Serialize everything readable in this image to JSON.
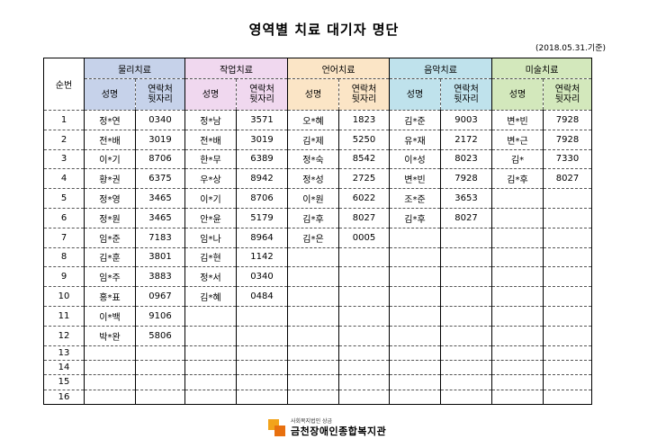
{
  "title": "영역별 치료 대기자 명단",
  "date": "(2018.05.31.기준)",
  "header": {
    "num_label": "순번",
    "categories": [
      "물리치료",
      "작업치료",
      "언어치료",
      "음악치료",
      "미술치료"
    ],
    "name_label": "성명",
    "contact_label": "연락처\n뒷자리"
  },
  "rows": [
    {
      "num": "1",
      "cells": [
        [
          "정*연",
          "0340"
        ],
        [
          "정*남",
          "3571"
        ],
        [
          "오*혜",
          "1823"
        ],
        [
          "김*준",
          "9003"
        ],
        [
          "변*빈",
          "7928"
        ]
      ]
    },
    {
      "num": "2",
      "cells": [
        [
          "전*배",
          "3019"
        ],
        [
          "전*배",
          "3019"
        ],
        [
          "김*제",
          "5250"
        ],
        [
          "유*재",
          "2172"
        ],
        [
          "변*근",
          "7928"
        ]
      ]
    },
    {
      "num": "3",
      "cells": [
        [
          "이*기",
          "8706"
        ],
        [
          "한*무",
          "6389"
        ],
        [
          "정*숙",
          "8542"
        ],
        [
          "이*성",
          "8023"
        ],
        [
          "김*",
          "7330"
        ]
      ]
    },
    {
      "num": "4",
      "cells": [
        [
          "황*권",
          "6375"
        ],
        [
          "우*상",
          "8942"
        ],
        [
          "정*성",
          "2725"
        ],
        [
          "변*빈",
          "7928"
        ],
        [
          "김*후",
          "8027"
        ]
      ]
    },
    {
      "num": "5",
      "cells": [
        [
          "정*영",
          "3465"
        ],
        [
          "이*기",
          "8706"
        ],
        [
          "이*원",
          "6022"
        ],
        [
          "조*준",
          "3653"
        ],
        [
          "",
          ""
        ]
      ]
    },
    {
      "num": "6",
      "cells": [
        [
          "정*원",
          "3465"
        ],
        [
          "안*윤",
          "5179"
        ],
        [
          "김*후",
          "8027"
        ],
        [
          "김*후",
          "8027"
        ],
        [
          "",
          ""
        ]
      ]
    },
    {
      "num": "7",
      "cells": [
        [
          "임*준",
          "7183"
        ],
        [
          "임*나",
          "8964"
        ],
        [
          "김*은",
          "0005"
        ],
        [
          "",
          ""
        ],
        [
          "",
          ""
        ]
      ]
    },
    {
      "num": "8",
      "cells": [
        [
          "김*훈",
          "3801"
        ],
        [
          "김*현",
          "1142"
        ],
        [
          "",
          ""
        ],
        [
          "",
          ""
        ],
        [
          "",
          ""
        ]
      ]
    },
    {
      "num": "9",
      "cells": [
        [
          "임*주",
          "3883"
        ],
        [
          "정*서",
          "0340"
        ],
        [
          "",
          ""
        ],
        [
          "",
          ""
        ],
        [
          "",
          ""
        ]
      ]
    },
    {
      "num": "10",
      "cells": [
        [
          "홍*표",
          "0967"
        ],
        [
          "김*혜",
          "0484"
        ],
        [
          "",
          ""
        ],
        [
          "",
          ""
        ],
        [
          "",
          ""
        ]
      ]
    },
    {
      "num": "11",
      "cells": [
        [
          "이*백",
          "9106"
        ],
        [
          "",
          ""
        ],
        [
          "",
          ""
        ],
        [
          "",
          ""
        ],
        [
          "",
          ""
        ]
      ]
    },
    {
      "num": "12",
      "cells": [
        [
          "박*완",
          "5806"
        ],
        [
          "",
          ""
        ],
        [
          "",
          ""
        ],
        [
          "",
          ""
        ],
        [
          "",
          ""
        ]
      ]
    },
    {
      "num": "13",
      "cells": [
        [
          "",
          ""
        ],
        [
          "",
          ""
        ],
        [
          "",
          ""
        ],
        [
          "",
          ""
        ],
        [
          "",
          ""
        ]
      ]
    },
    {
      "num": "14",
      "cells": [
        [
          "",
          ""
        ],
        [
          "",
          ""
        ],
        [
          "",
          ""
        ],
        [
          "",
          ""
        ],
        [
          "",
          ""
        ]
      ]
    },
    {
      "num": "15",
      "cells": [
        [
          "",
          ""
        ],
        [
          "",
          ""
        ],
        [
          "",
          ""
        ],
        [
          "",
          ""
        ],
        [
          "",
          ""
        ]
      ]
    },
    {
      "num": "16",
      "cells": [
        [
          "",
          ""
        ],
        [
          "",
          ""
        ],
        [
          "",
          ""
        ],
        [
          "",
          ""
        ],
        [
          "",
          ""
        ]
      ]
    }
  ],
  "logo": {
    "sub": "사회복지법인 상금",
    "main": "금천장애인종합복지관",
    "icon": "orange-squares-icon",
    "colors": [
      "#f2a31b",
      "#e8700f"
    ]
  }
}
